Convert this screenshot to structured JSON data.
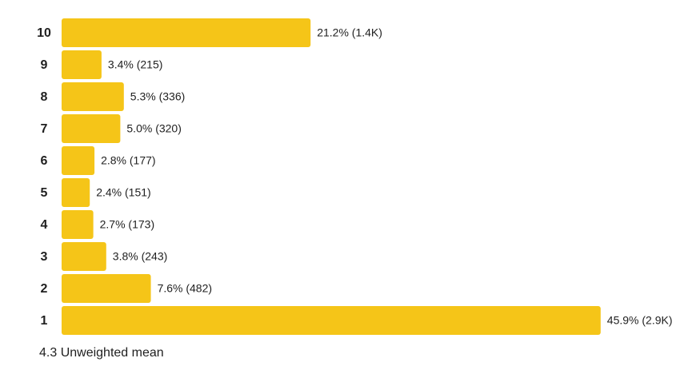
{
  "chart_data": {
    "type": "hbar",
    "categories": [
      "10",
      "9",
      "8",
      "7",
      "6",
      "5",
      "4",
      "3",
      "2",
      "1"
    ],
    "values": [
      21.2,
      3.4,
      5.3,
      5.0,
      2.8,
      2.4,
      2.7,
      3.8,
      7.6,
      45.9
    ],
    "value_labels": [
      "21.2% (1.4K)",
      "3.4% (215)",
      "5.3% (336)",
      "5.0% (320)",
      "2.8% (177)",
      "2.4% (151)",
      "2.7% (173)",
      "3.8% (243)",
      "7.6% (482)",
      "45.9% (2.9K)"
    ],
    "color": "#f5c518",
    "note": "4.3 Unweighted mean"
  }
}
